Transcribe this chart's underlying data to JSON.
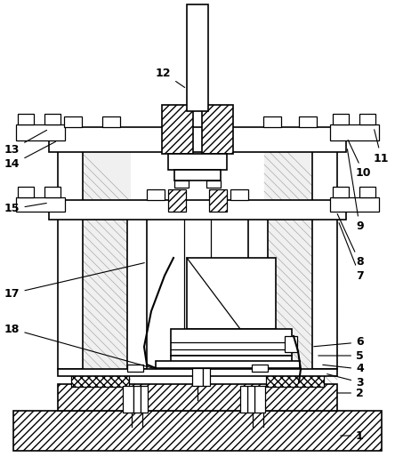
{
  "bg_color": "#ffffff",
  "line_color": "#000000",
  "figsize": [
    4.44,
    5.14
  ],
  "dpi": 100,
  "label_fs": 9
}
